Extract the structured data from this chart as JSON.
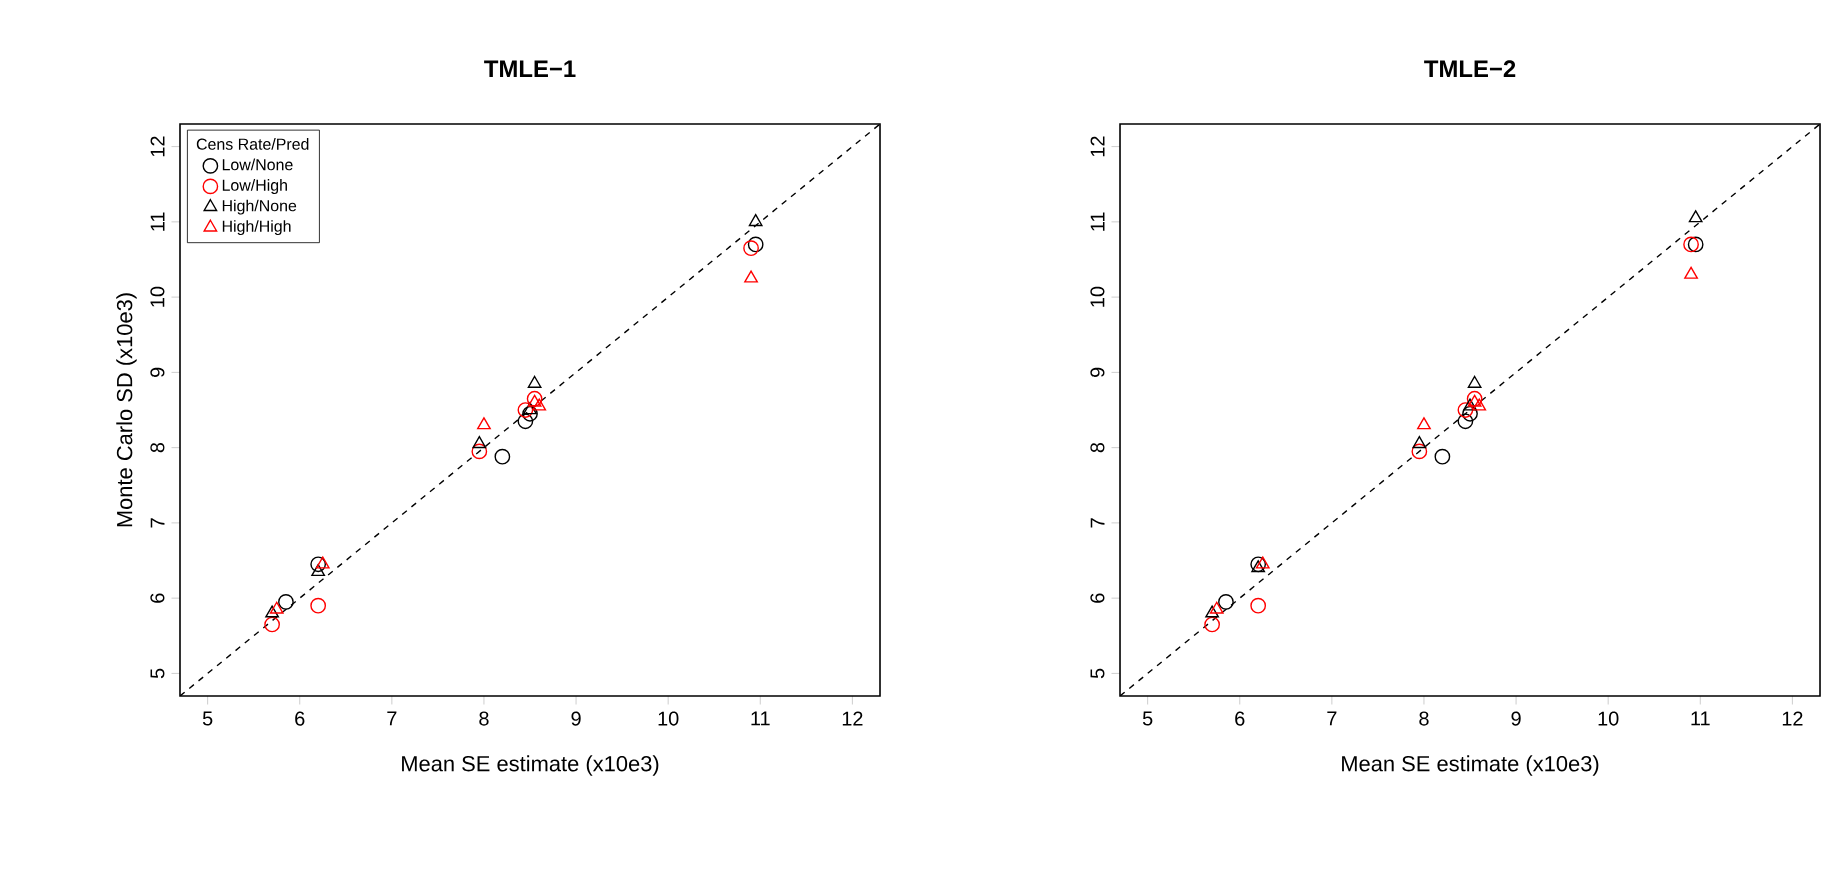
{
  "chart_data": [
    {
      "type": "scatter",
      "title": "TMLE−1",
      "xlabel": "Mean SE estimate (x10e3)",
      "ylabel": "Monte Carlo SD (x10e3)",
      "xlim": [
        4.7,
        12.3
      ],
      "ylim": [
        4.7,
        12.3
      ],
      "xticks": [
        5,
        6,
        7,
        8,
        9,
        10,
        11,
        12
      ],
      "yticks": [
        5,
        6,
        7,
        8,
        9,
        10,
        11,
        12
      ],
      "legend": "top left",
      "legend_title": "Cens Rate/Pred",
      "grid": false,
      "series": [
        {
          "name": "Low/None",
          "color": "#000000",
          "marker": "circle",
          "x": [
            5.85,
            6.2,
            8.2,
            8.45,
            8.5,
            10.95
          ],
          "values": [
            5.95,
            6.45,
            7.88,
            8.35,
            8.45,
            10.7
          ]
        },
        {
          "name": "Low/High",
          "color": "#ff0000",
          "marker": "circle",
          "x": [
            5.7,
            6.2,
            7.95,
            8.45,
            8.55,
            10.9
          ],
          "values": [
            5.65,
            5.9,
            7.95,
            8.5,
            8.65,
            10.65
          ]
        },
        {
          "name": "High/None",
          "color": "#000000",
          "marker": "triangle",
          "x": [
            5.7,
            6.2,
            7.95,
            8.5,
            8.55,
            10.95
          ],
          "values": [
            5.8,
            6.35,
            8.05,
            8.5,
            8.85,
            11.0
          ]
        },
        {
          "name": "High/High",
          "color": "#ff0000",
          "marker": "triangle",
          "x": [
            5.75,
            6.25,
            8.0,
            8.55,
            8.6,
            10.9
          ],
          "values": [
            5.85,
            6.45,
            8.3,
            8.6,
            8.55,
            10.25
          ]
        },
        {
          "type": "line",
          "color": "#000000",
          "line_style": "dashed",
          "marker": "none",
          "x": [
            4.7,
            12.3
          ],
          "values": [
            4.7,
            12.3
          ]
        }
      ]
    },
    {
      "type": "scatter",
      "title": "TMLE−2",
      "xlabel": "Mean SE estimate (x10e3)",
      "xlim": [
        4.7,
        12.3
      ],
      "ylim": [
        4.7,
        12.3
      ],
      "xticks": [
        5,
        6,
        7,
        8,
        9,
        10,
        11,
        12
      ],
      "yticks": [
        5,
        6,
        7,
        8,
        9,
        10,
        11,
        12
      ],
      "legend": false,
      "grid": false,
      "series": [
        {
          "color": "#000000",
          "marker": "circle",
          "x": [
            5.85,
            6.2,
            8.2,
            8.45,
            8.5,
            10.95
          ],
          "values": [
            5.95,
            6.45,
            7.88,
            8.35,
            8.45,
            10.7
          ]
        },
        {
          "color": "#ff0000",
          "marker": "circle",
          "x": [
            5.7,
            6.2,
            7.95,
            8.45,
            8.55,
            10.9
          ],
          "values": [
            5.65,
            5.9,
            7.95,
            8.5,
            8.65,
            10.7
          ]
        },
        {
          "color": "#000000",
          "marker": "triangle",
          "x": [
            5.7,
            6.2,
            7.95,
            8.5,
            8.55,
            10.95
          ],
          "values": [
            5.8,
            6.4,
            8.05,
            8.55,
            8.85,
            11.05
          ]
        },
        {
          "color": "#ff0000",
          "marker": "triangle",
          "x": [
            5.75,
            6.25,
            8.0,
            8.55,
            8.6,
            10.9
          ],
          "values": [
            5.85,
            6.45,
            8.3,
            8.6,
            8.55,
            10.3
          ]
        },
        {
          "type": "line",
          "color": "#000000",
          "line_style": "dashed",
          "marker": "none",
          "x": [
            4.7,
            12.3
          ],
          "values": [
            4.7,
            12.3
          ]
        }
      ]
    }
  ]
}
